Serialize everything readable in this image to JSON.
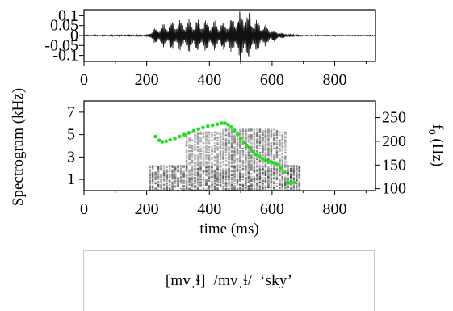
{
  "chart_data": [
    {
      "type": "line",
      "panel": "waveform",
      "xlim": [
        0,
        930
      ],
      "ylim": [
        -0.13,
        0.13
      ],
      "x_ticks": [
        0,
        200,
        400,
        600,
        800
      ],
      "y_ticks": [
        0.1,
        0.05,
        0,
        -0.05,
        -0.1
      ],
      "y_tick_labels": [
        "0.1",
        "0.05",
        "0",
        "-0.05",
        "-0.1"
      ],
      "signal_envelope": {
        "time_ms": [
          0,
          200,
          230,
          280,
          340,
          400,
          440,
          480,
          500,
          515,
          525,
          540,
          560,
          600,
          640,
          680,
          700,
          930
        ],
        "amplitude": [
          0.002,
          0.004,
          0.045,
          0.075,
          0.085,
          0.08,
          0.07,
          0.095,
          0.13,
          0.13,
          0.12,
          0.095,
          0.075,
          0.035,
          0.01,
          0.004,
          0.002,
          0.002
        ]
      },
      "grid": false
    },
    {
      "type": "heatmap",
      "panel": "spectrogram",
      "xlim": [
        0,
        930
      ],
      "ylim": [
        0,
        8
      ],
      "x_ticks": [
        0,
        200,
        400,
        600,
        800
      ],
      "y_ticks": [
        1,
        3,
        5,
        7
      ],
      "ylabel": "Spectrogram (kHz)",
      "xlabel": "time (ms)",
      "y2label": "f0 (Hz)",
      "y2lim": [
        96,
        285
      ],
      "y2_ticks": [
        100,
        150,
        200,
        250
      ],
      "energy_regions": [
        {
          "t0": 200,
          "t1": 690,
          "f0": 0,
          "f1": 2.2,
          "density": 0.9
        },
        {
          "t0": 320,
          "t1": 640,
          "f0": 2.2,
          "f1": 5.2,
          "density": 0.55
        },
        {
          "t0": 440,
          "t1": 620,
          "f0": 2.5,
          "f1": 5.5,
          "density": 0.7
        },
        {
          "t0": 0,
          "t1": 930,
          "f0": 0,
          "f1": 8,
          "density": 0.08
        }
      ],
      "series": [
        {
          "color": "#22dd22",
          "time_ms": [
            228,
            240,
            250,
            262,
            275,
            290,
            305,
            320,
            335,
            350,
            365,
            380,
            395,
            410,
            425,
            440,
            450,
            460,
            470,
            480,
            490,
            500,
            510,
            520,
            530,
            540,
            550,
            560,
            570,
            580,
            590,
            600,
            610,
            620,
            630,
            640,
            650,
            660,
            670
          ],
          "f0_hz": [
            210,
            202,
            199,
            200,
            203,
            206,
            210,
            214,
            218,
            222,
            226,
            229,
            232,
            234,
            236,
            238,
            238,
            235,
            230,
            223,
            215,
            206,
            198,
            191,
            184,
            177,
            172,
            168,
            164,
            160,
            157,
            155,
            153,
            151,
            143,
            134,
            114,
            112,
            113
          ]
        }
      ],
      "grid": false
    }
  ],
  "caption": {
    "text": "[mvˌɬ]  /mvˌɬ/  ‘sky’"
  }
}
